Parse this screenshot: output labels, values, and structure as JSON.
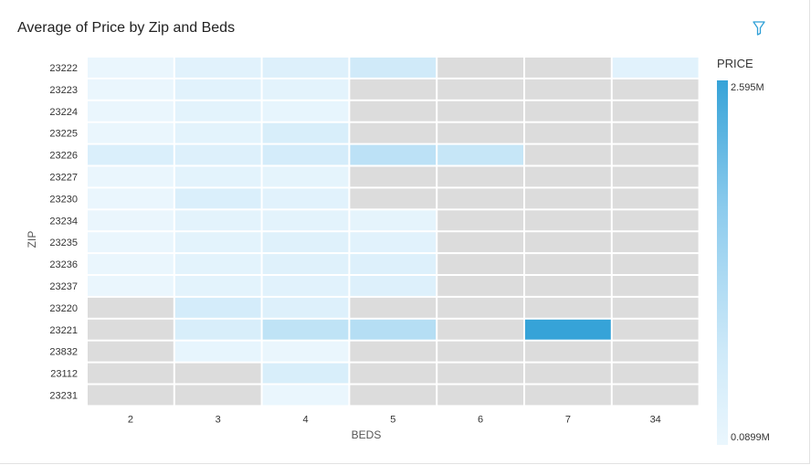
{
  "header": {
    "title": "Average of Price by Zip and Beds",
    "filter_icon": "filter-icon"
  },
  "legend": {
    "title": "PRICE",
    "max_label": "2.595M",
    "min_label": "0.0899M",
    "color_high": "#36a3d8",
    "color_low": "#eaf6fd",
    "empty_color": "#dcdcdc"
  },
  "chart_data": {
    "type": "heatmap",
    "title": "Average of Price by Zip and Beds",
    "xlabel": "BEDS",
    "ylabel": "ZIP",
    "x": [
      "2",
      "3",
      "4",
      "5",
      "6",
      "7",
      "34"
    ],
    "y": [
      "23222",
      "23223",
      "23224",
      "23225",
      "23226",
      "23227",
      "23230",
      "23234",
      "23235",
      "23236",
      "23237",
      "23220",
      "23221",
      "23832",
      "23112",
      "23231"
    ],
    "color_range": [
      0.0899,
      2.595
    ],
    "color_unit": "M",
    "values": [
      [
        0.1,
        0.3,
        0.4,
        0.7,
        null,
        null,
        0.3
      ],
      [
        0.1,
        0.3,
        0.25,
        null,
        null,
        null,
        null
      ],
      [
        0.1,
        0.25,
        0.15,
        null,
        null,
        null,
        null
      ],
      [
        0.1,
        0.25,
        0.5,
        null,
        null,
        null,
        null
      ],
      [
        0.45,
        0.4,
        0.6,
        1.0,
        0.85,
        null,
        null
      ],
      [
        0.1,
        0.25,
        0.2,
        null,
        null,
        null,
        null
      ],
      [
        0.1,
        0.45,
        0.3,
        null,
        null,
        null,
        null
      ],
      [
        0.1,
        0.25,
        0.25,
        0.2,
        null,
        null,
        null
      ],
      [
        0.1,
        0.25,
        0.35,
        0.3,
        null,
        null,
        null
      ],
      [
        0.1,
        0.25,
        0.35,
        0.4,
        null,
        null,
        null
      ],
      [
        0.1,
        0.25,
        0.3,
        0.4,
        null,
        null,
        null
      ],
      [
        null,
        0.6,
        0.4,
        null,
        null,
        null,
        null
      ],
      [
        null,
        0.5,
        0.95,
        1.1,
        null,
        2.595,
        null
      ],
      [
        null,
        0.15,
        0.1,
        null,
        null,
        null,
        null
      ],
      [
        null,
        null,
        0.5,
        null,
        null,
        null,
        null
      ],
      [
        null,
        null,
        0.1,
        null,
        null,
        null,
        null
      ]
    ]
  }
}
